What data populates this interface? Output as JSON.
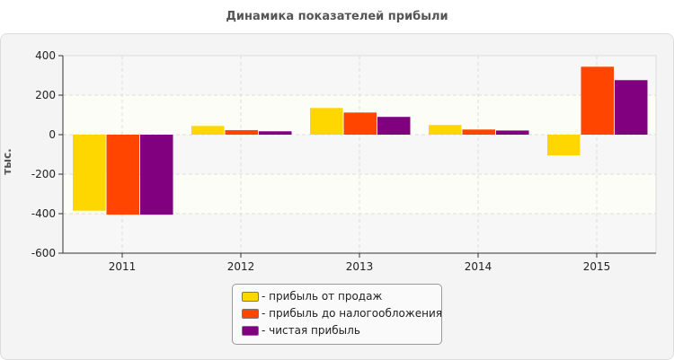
{
  "chart_data": {
    "type": "bar",
    "title": "Динамика показателей прибыли",
    "ylabel": "тыс.",
    "xlabel": "",
    "ylim": [
      -600,
      400
    ],
    "yticks": [
      400,
      200,
      0,
      -200,
      -400,
      -600
    ],
    "categories": [
      "2011",
      "2012",
      "2013",
      "2014",
      "2015"
    ],
    "grid": true,
    "legend_position": "bottom",
    "series": [
      {
        "name": "- прибыль от продаж",
        "color": "#FFD700",
        "values": [
          -385,
          44,
          135,
          49,
          -105
        ]
      },
      {
        "name": "- прибыль до налогообложения",
        "color": "#FF4500",
        "values": [
          -405,
          23,
          112,
          26,
          344
        ]
      },
      {
        "name": "- чистая прибыль",
        "color": "#800080",
        "values": [
          -405,
          17,
          90,
          21,
          276
        ]
      }
    ]
  }
}
